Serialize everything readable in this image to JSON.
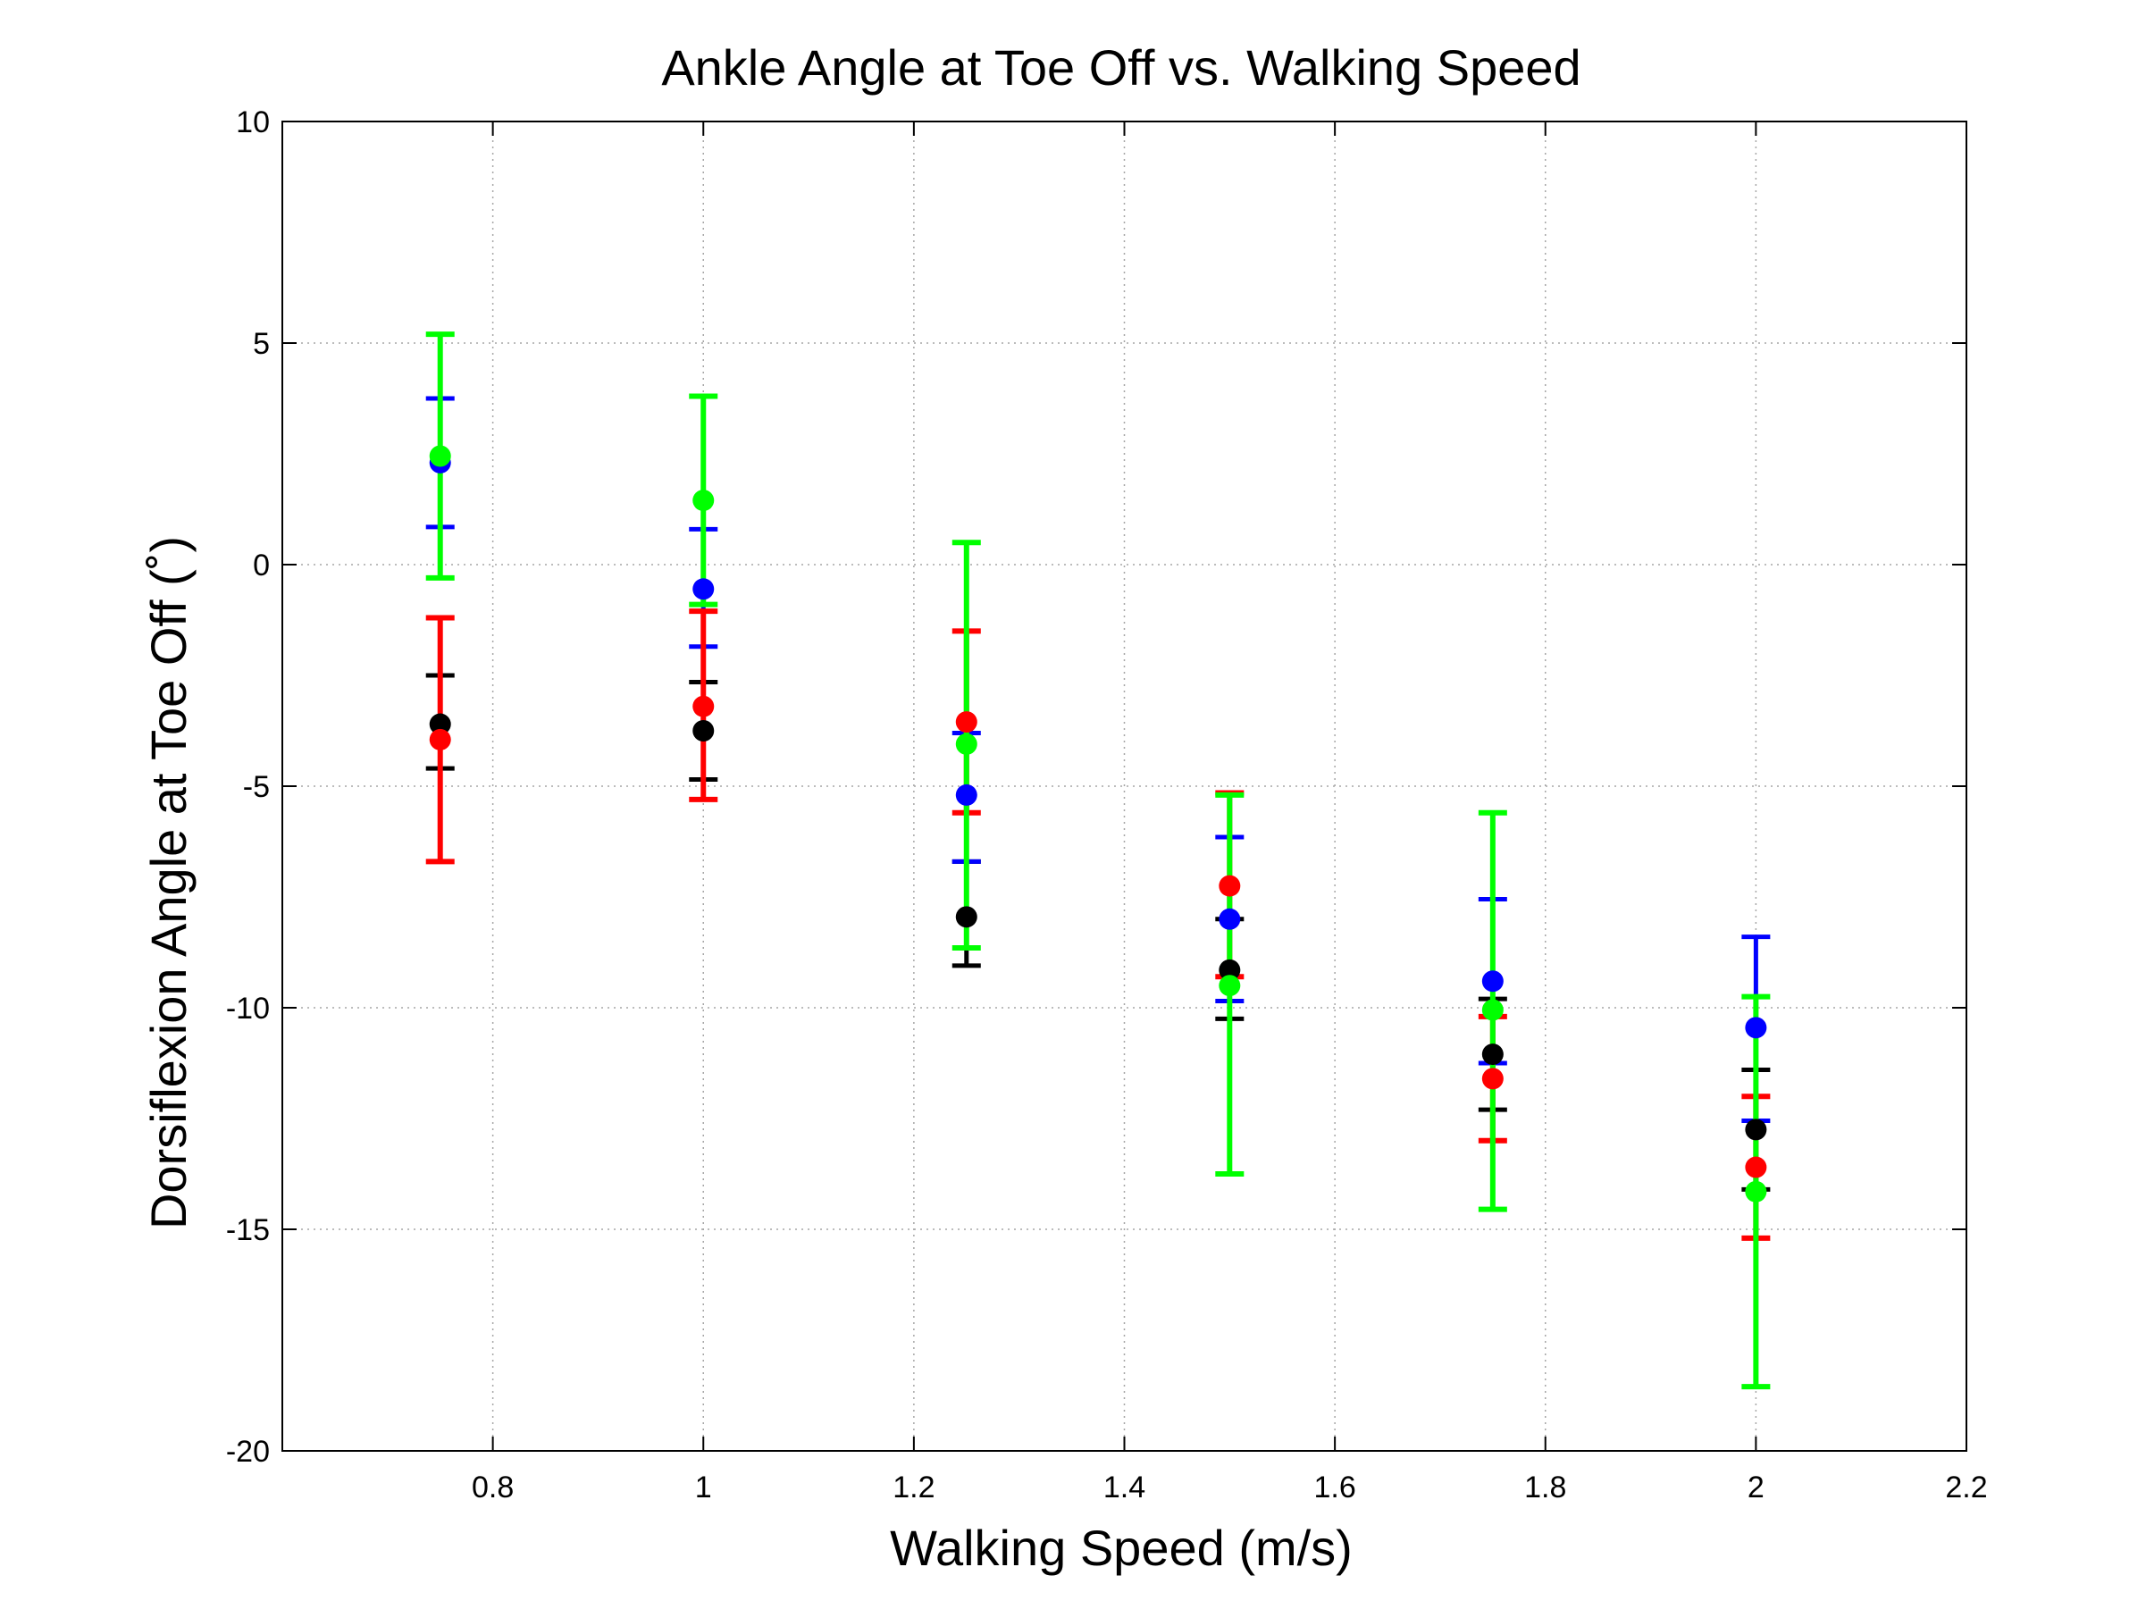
{
  "chart_data": {
    "type": "scatter",
    "title": "Ankle Angle at Toe Off vs. Walking Speed",
    "xlabel": "Walking Speed (m/s)",
    "ylabel": "Dorsiflexion Angle at Toe Off (˚)",
    "xlim": [
      0.6,
      2.2
    ],
    "ylim": [
      -20,
      10
    ],
    "xticks": [
      0.8,
      1,
      1.2,
      1.4,
      1.6,
      1.8,
      2,
      2.2
    ],
    "xtick_labels": [
      "0.8",
      "1",
      "1.2",
      "1.4",
      "1.6",
      "1.8",
      "2",
      "2.2"
    ],
    "yticks": [
      -20,
      -15,
      -10,
      -5,
      0,
      5,
      10
    ],
    "ytick_labels": [
      "-20",
      "-15",
      "-10",
      "-5",
      "0",
      "5",
      "10"
    ],
    "grid": true,
    "legend": "none",
    "error_bars": true,
    "series": [
      {
        "color": "#000000",
        "points": [
          {
            "x": 0.75,
            "y": -3.6,
            "lo": -4.6,
            "hi": -2.5
          },
          {
            "x": 1.0,
            "y": -3.75,
            "lo": -4.85,
            "hi": -2.65
          },
          {
            "x": 1.25,
            "y": -7.95,
            "lo": -9.05,
            "hi": -6.7
          },
          {
            "x": 1.5,
            "y": -9.15,
            "lo": -10.25,
            "hi": -8.0
          },
          {
            "x": 1.75,
            "y": -11.05,
            "lo": -12.3,
            "hi": -9.8
          },
          {
            "x": 2.0,
            "y": -12.75,
            "lo": -14.1,
            "hi": -11.4
          }
        ]
      },
      {
        "color": "#0000ff",
        "points": [
          {
            "x": 0.75,
            "y": 2.3,
            "lo": 0.85,
            "hi": 3.75
          },
          {
            "x": 1.0,
            "y": -0.55,
            "lo": -1.85,
            "hi": 0.8
          },
          {
            "x": 1.25,
            "y": -5.2,
            "lo": -6.7,
            "hi": -3.8
          },
          {
            "x": 1.5,
            "y": -8.0,
            "lo": -9.85,
            "hi": -6.15
          },
          {
            "x": 1.75,
            "y": -9.4,
            "lo": -11.25,
            "hi": -7.55
          },
          {
            "x": 2.0,
            "y": -10.45,
            "lo": -12.55,
            "hi": -8.4
          }
        ]
      },
      {
        "color": "#ff0000",
        "points": [
          {
            "x": 0.75,
            "y": -3.95,
            "lo": -6.7,
            "hi": -1.2
          },
          {
            "x": 1.0,
            "y": -3.2,
            "lo": -5.3,
            "hi": -1.05
          },
          {
            "x": 1.25,
            "y": -3.55,
            "lo": -5.6,
            "hi": -1.5
          },
          {
            "x": 1.5,
            "y": -7.25,
            "lo": -9.3,
            "hi": -5.15
          },
          {
            "x": 1.75,
            "y": -11.6,
            "lo": -13.0,
            "hi": -10.2
          },
          {
            "x": 2.0,
            "y": -13.6,
            "lo": -15.2,
            "hi": -12.0
          }
        ]
      },
      {
        "color": "#00ff00",
        "points": [
          {
            "x": 0.75,
            "y": 2.45,
            "lo": -0.3,
            "hi": 5.2
          },
          {
            "x": 1.0,
            "y": 1.45,
            "lo": -0.9,
            "hi": 3.8
          },
          {
            "x": 1.25,
            "y": -4.05,
            "lo": -8.65,
            "hi": 0.5
          },
          {
            "x": 1.5,
            "y": -9.5,
            "lo": -13.75,
            "hi": -5.2
          },
          {
            "x": 1.75,
            "y": -10.05,
            "lo": -14.55,
            "hi": -5.6
          },
          {
            "x": 2.0,
            "y": -14.15,
            "lo": -18.55,
            "hi": -9.75
          }
        ]
      }
    ]
  }
}
